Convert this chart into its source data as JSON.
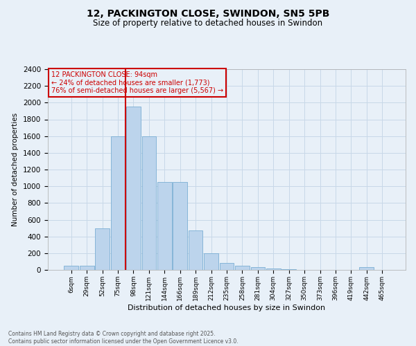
{
  "title": "12, PACKINGTON CLOSE, SWINDON, SN5 5PB",
  "subtitle": "Size of property relative to detached houses in Swindon",
  "xlabel": "Distribution of detached houses by size in Swindon",
  "ylabel": "Number of detached properties",
  "categories": [
    "6sqm",
    "29sqm",
    "52sqm",
    "75sqm",
    "98sqm",
    "121sqm",
    "144sqm",
    "166sqm",
    "189sqm",
    "212sqm",
    "235sqm",
    "258sqm",
    "281sqm",
    "304sqm",
    "327sqm",
    "350sqm",
    "373sqm",
    "396sqm",
    "419sqm",
    "442sqm",
    "465sqm"
  ],
  "values": [
    50,
    50,
    500,
    1600,
    1950,
    1600,
    1050,
    1050,
    475,
    200,
    80,
    50,
    30,
    15,
    5,
    0,
    0,
    0,
    0,
    30,
    0
  ],
  "bar_color": "#bcd4ec",
  "bar_edge_color": "#7aaed4",
  "grid_color": "#c8d8e8",
  "bg_color": "#e8f0f8",
  "red_line_category_index": 4,
  "annotation_text": "12 PACKINGTON CLOSE: 94sqm\n← 24% of detached houses are smaller (1,773)\n76% of semi-detached houses are larger (5,567) →",
  "annotation_box_color": "#cc0000",
  "ylim": [
    0,
    2400
  ],
  "yticks": [
    0,
    200,
    400,
    600,
    800,
    1000,
    1200,
    1400,
    1600,
    1800,
    2000,
    2200,
    2400
  ],
  "footer_line1": "Contains HM Land Registry data © Crown copyright and database right 2025.",
  "footer_line2": "Contains public sector information licensed under the Open Government Licence v3.0."
}
